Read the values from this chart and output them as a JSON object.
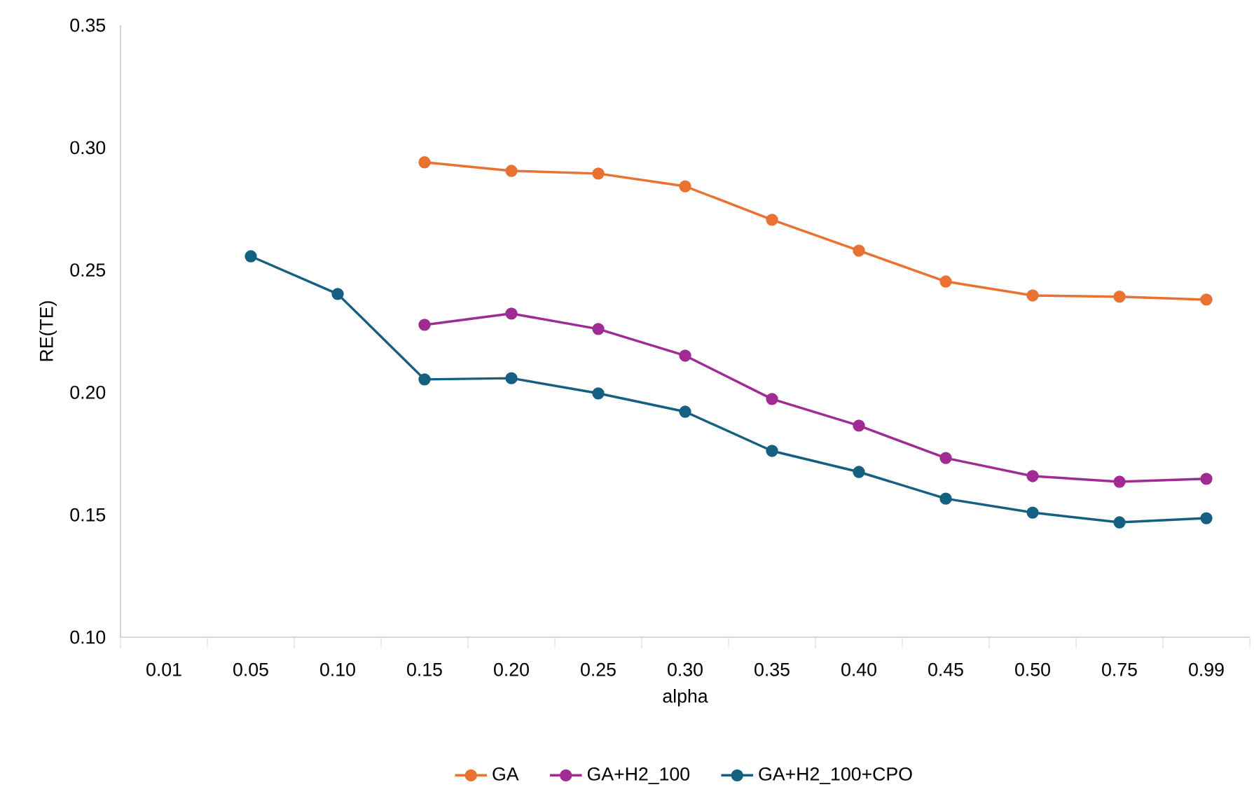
{
  "chart_data": {
    "type": "line",
    "xlabel": "alpha",
    "ylabel": "RE(TE)",
    "categories": [
      "0.01",
      "0.05",
      "0.10",
      "0.15",
      "0.20",
      "0.25",
      "0.30",
      "0.35",
      "0.40",
      "0.45",
      "0.50",
      "0.75",
      "0.99"
    ],
    "ylim": [
      0.1,
      0.35
    ],
    "yticks": [
      {
        "value": 0.1,
        "label": "0.10"
      },
      {
        "value": 0.15,
        "label": "0.15"
      },
      {
        "value": 0.2,
        "label": "0.20"
      },
      {
        "value": 0.25,
        "label": "0.25"
      },
      {
        "value": 0.3,
        "label": "0.30"
      },
      {
        "value": 0.35,
        "label": "0.35"
      }
    ],
    "series": [
      {
        "name": "GA",
        "color": "#e97132",
        "values": [
          null,
          null,
          null,
          0.294,
          0.2905,
          0.2894,
          0.2842,
          0.2705,
          0.2579,
          0.2453,
          0.2396,
          0.2391,
          0.2379
        ]
      },
      {
        "name": "GA+H2_100",
        "color": "#a02b93",
        "values": [
          null,
          null,
          null,
          0.2276,
          0.2322,
          0.2259,
          0.215,
          0.1973,
          0.1864,
          0.1732,
          0.1658,
          0.1635,
          0.1647
        ]
      },
      {
        "name": "GA+H2_100+CPO",
        "color": "#156082",
        "values": [
          null,
          0.2556,
          0.2402,
          0.2053,
          0.2058,
          0.1996,
          0.1921,
          0.1761,
          0.1675,
          0.1566,
          0.1509,
          0.1469,
          0.1486
        ]
      }
    ],
    "marker": "circle",
    "line_style": "solid",
    "legend": "bottom"
  }
}
